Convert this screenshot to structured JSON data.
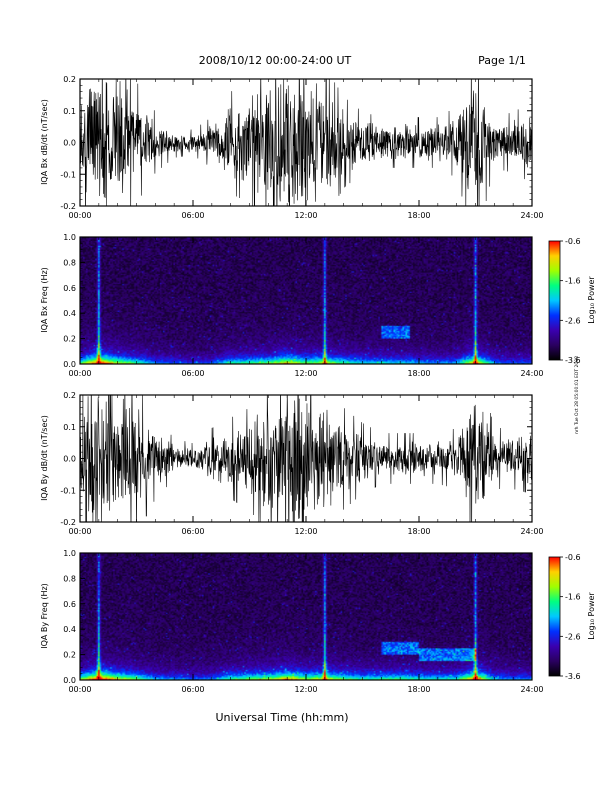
{
  "header": {
    "title": "2008/10/12  00:00-24:00 UT",
    "page": "Page 1/1"
  },
  "stamp": "nrh Tue Oct 28 05:00:01 EDT 2008",
  "xlabel": "Universal Time (hh:mm)",
  "colors": {
    "trace": "#000000",
    "background": "#ffffff",
    "colormap": [
      "#000000",
      "#2a0060",
      "#3a00b0",
      "#0030ff",
      "#00c8ff",
      "#00ff80",
      "#a0ff00",
      "#ffd000",
      "#ff0000"
    ]
  },
  "chart_data": [
    {
      "type": "line",
      "title": "",
      "ylabel": "IQA Bx dB/dt (nT/sec)",
      "x_ticks": [
        "00:00",
        "06:00",
        "12:00",
        "18:00",
        "24:00"
      ],
      "xlim": [
        "00:00",
        "24:00"
      ],
      "y_ticks": [
        "0.2",
        "0.1",
        "0.0",
        "-0.1",
        "-0.2"
      ],
      "ylim": [
        -0.2,
        0.2
      ],
      "envelope": [
        {
          "hour": 0,
          "amp": 0.13
        },
        {
          "hour": 0.5,
          "amp": 0.2
        },
        {
          "hour": 1,
          "amp": 0.2
        },
        {
          "hour": 2,
          "amp": 0.2
        },
        {
          "hour": 3,
          "amp": 0.12
        },
        {
          "hour": 4,
          "amp": 0.06
        },
        {
          "hour": 5,
          "amp": 0.03
        },
        {
          "hour": 6,
          "amp": 0.025
        },
        {
          "hour": 7,
          "amp": 0.05
        },
        {
          "hour": 8,
          "amp": 0.1
        },
        {
          "hour": 9,
          "amp": 0.12
        },
        {
          "hour": 10,
          "amp": 0.16
        },
        {
          "hour": 11,
          "amp": 0.2
        },
        {
          "hour": 12,
          "amp": 0.2
        },
        {
          "hour": 13,
          "amp": 0.15
        },
        {
          "hour": 14,
          "amp": 0.09
        },
        {
          "hour": 15,
          "amp": 0.06
        },
        {
          "hour": 16,
          "amp": 0.05
        },
        {
          "hour": 17,
          "amp": 0.05
        },
        {
          "hour": 18,
          "amp": 0.05
        },
        {
          "hour": 19,
          "amp": 0.05
        },
        {
          "hour": 20,
          "amp": 0.07
        },
        {
          "hour": 21,
          "amp": 0.2
        },
        {
          "hour": 22,
          "amp": 0.05
        },
        {
          "hour": 23,
          "amp": 0.06
        },
        {
          "hour": 24,
          "amp": 0.08
        }
      ]
    },
    {
      "type": "heatmap",
      "title": "",
      "ylabel": "IQA Bx Freq (Hz)",
      "x_ticks": [
        "00:00",
        "06:00",
        "12:00",
        "18:00",
        "24:00"
      ],
      "xlim": [
        "00:00",
        "24:00"
      ],
      "y_ticks": [
        "1.0",
        "0.8",
        "0.6",
        "0.4",
        "0.2",
        "0.0"
      ],
      "ylim": [
        0,
        1.0
      ],
      "colorbar": {
        "label": "Log₁₀ Power",
        "ticks": [
          "-0.6",
          "-1.6",
          "-2.6",
          "-3.6"
        ],
        "range": [
          -3.6,
          -0.6
        ]
      },
      "activity": [
        0.55,
        1.0,
        0.7,
        0.55,
        0.35,
        0.3,
        0.25,
        0.3,
        0.5,
        0.55,
        0.6,
        0.8,
        0.6,
        0.7,
        0.55,
        0.45,
        0.45,
        0.45,
        0.4,
        0.35,
        0.4,
        0.85,
        0.35,
        0.3,
        0.3
      ],
      "features": [
        {
          "hour": 1.0,
          "label": "vertical streak"
        },
        {
          "hour": 13.0,
          "label": "vertical streak"
        },
        {
          "hour": 21.0,
          "label": "vertical streak"
        },
        {
          "hour_start": 16.0,
          "hour_end": 17.5,
          "freq_low": 0.2,
          "freq_high": 0.3,
          "label": "band"
        }
      ]
    },
    {
      "type": "line",
      "title": "",
      "ylabel": "IQA By dB/dt (nT/sec)",
      "x_ticks": [
        "00:00",
        "06:00",
        "12:00",
        "18:00",
        "24:00"
      ],
      "xlim": [
        "00:00",
        "24:00"
      ],
      "y_ticks": [
        "0.2",
        "0.1",
        "0.0",
        "-0.1",
        "-0.2"
      ],
      "ylim": [
        -0.2,
        0.2
      ],
      "envelope": [
        {
          "hour": 0,
          "amp": 0.12
        },
        {
          "hour": 0.5,
          "amp": 0.2
        },
        {
          "hour": 1,
          "amp": 0.2
        },
        {
          "hour": 2,
          "amp": 0.2
        },
        {
          "hour": 3,
          "amp": 0.15
        },
        {
          "hour": 4,
          "amp": 0.08
        },
        {
          "hour": 5,
          "amp": 0.04
        },
        {
          "hour": 6,
          "amp": 0.03
        },
        {
          "hour": 7,
          "amp": 0.06
        },
        {
          "hour": 8,
          "amp": 0.08
        },
        {
          "hour": 9,
          "amp": 0.1
        },
        {
          "hour": 10,
          "amp": 0.15
        },
        {
          "hour": 11,
          "amp": 0.2
        },
        {
          "hour": 12,
          "amp": 0.2
        },
        {
          "hour": 13,
          "amp": 0.15
        },
        {
          "hour": 14,
          "amp": 0.1
        },
        {
          "hour": 15,
          "amp": 0.07
        },
        {
          "hour": 16,
          "amp": 0.05
        },
        {
          "hour": 17,
          "amp": 0.05
        },
        {
          "hour": 18,
          "amp": 0.05
        },
        {
          "hour": 19,
          "amp": 0.05
        },
        {
          "hour": 20,
          "amp": 0.06
        },
        {
          "hour": 21,
          "amp": 0.2
        },
        {
          "hour": 22,
          "amp": 0.06
        },
        {
          "hour": 23,
          "amp": 0.06
        },
        {
          "hour": 24,
          "amp": 0.07
        }
      ]
    },
    {
      "type": "heatmap",
      "title": "",
      "ylabel": "IQA By Freq (Hz)",
      "x_ticks": [
        "00:00",
        "06:00",
        "12:00",
        "18:00",
        "24:00"
      ],
      "xlim": [
        "00:00",
        "24:00"
      ],
      "y_ticks": [
        "1.0",
        "0.8",
        "0.6",
        "0.4",
        "0.2",
        "0.0"
      ],
      "ylim": [
        0,
        1.0
      ],
      "colorbar": {
        "label": "Log₁₀ Power",
        "ticks": [
          "-0.6",
          "-1.6",
          "-2.6",
          "-3.6"
        ],
        "range": [
          -3.6,
          -0.6
        ]
      },
      "activity": [
        0.6,
        1.0,
        0.75,
        0.6,
        0.4,
        0.35,
        0.3,
        0.35,
        0.55,
        0.6,
        0.65,
        0.85,
        0.65,
        0.75,
        0.6,
        0.5,
        0.55,
        0.55,
        0.5,
        0.45,
        0.5,
        0.9,
        0.4,
        0.35,
        0.35
      ],
      "features": [
        {
          "hour": 1.0,
          "label": "vertical streak"
        },
        {
          "hour": 13.0,
          "label": "vertical streak"
        },
        {
          "hour": 21.0,
          "label": "vertical streak"
        },
        {
          "hour_start": 16.0,
          "hour_end": 18.0,
          "freq_low": 0.2,
          "freq_high": 0.3,
          "label": "band"
        },
        {
          "hour_start": 18.0,
          "hour_end": 21.0,
          "freq_low": 0.15,
          "freq_high": 0.25,
          "label": "band"
        }
      ]
    }
  ]
}
